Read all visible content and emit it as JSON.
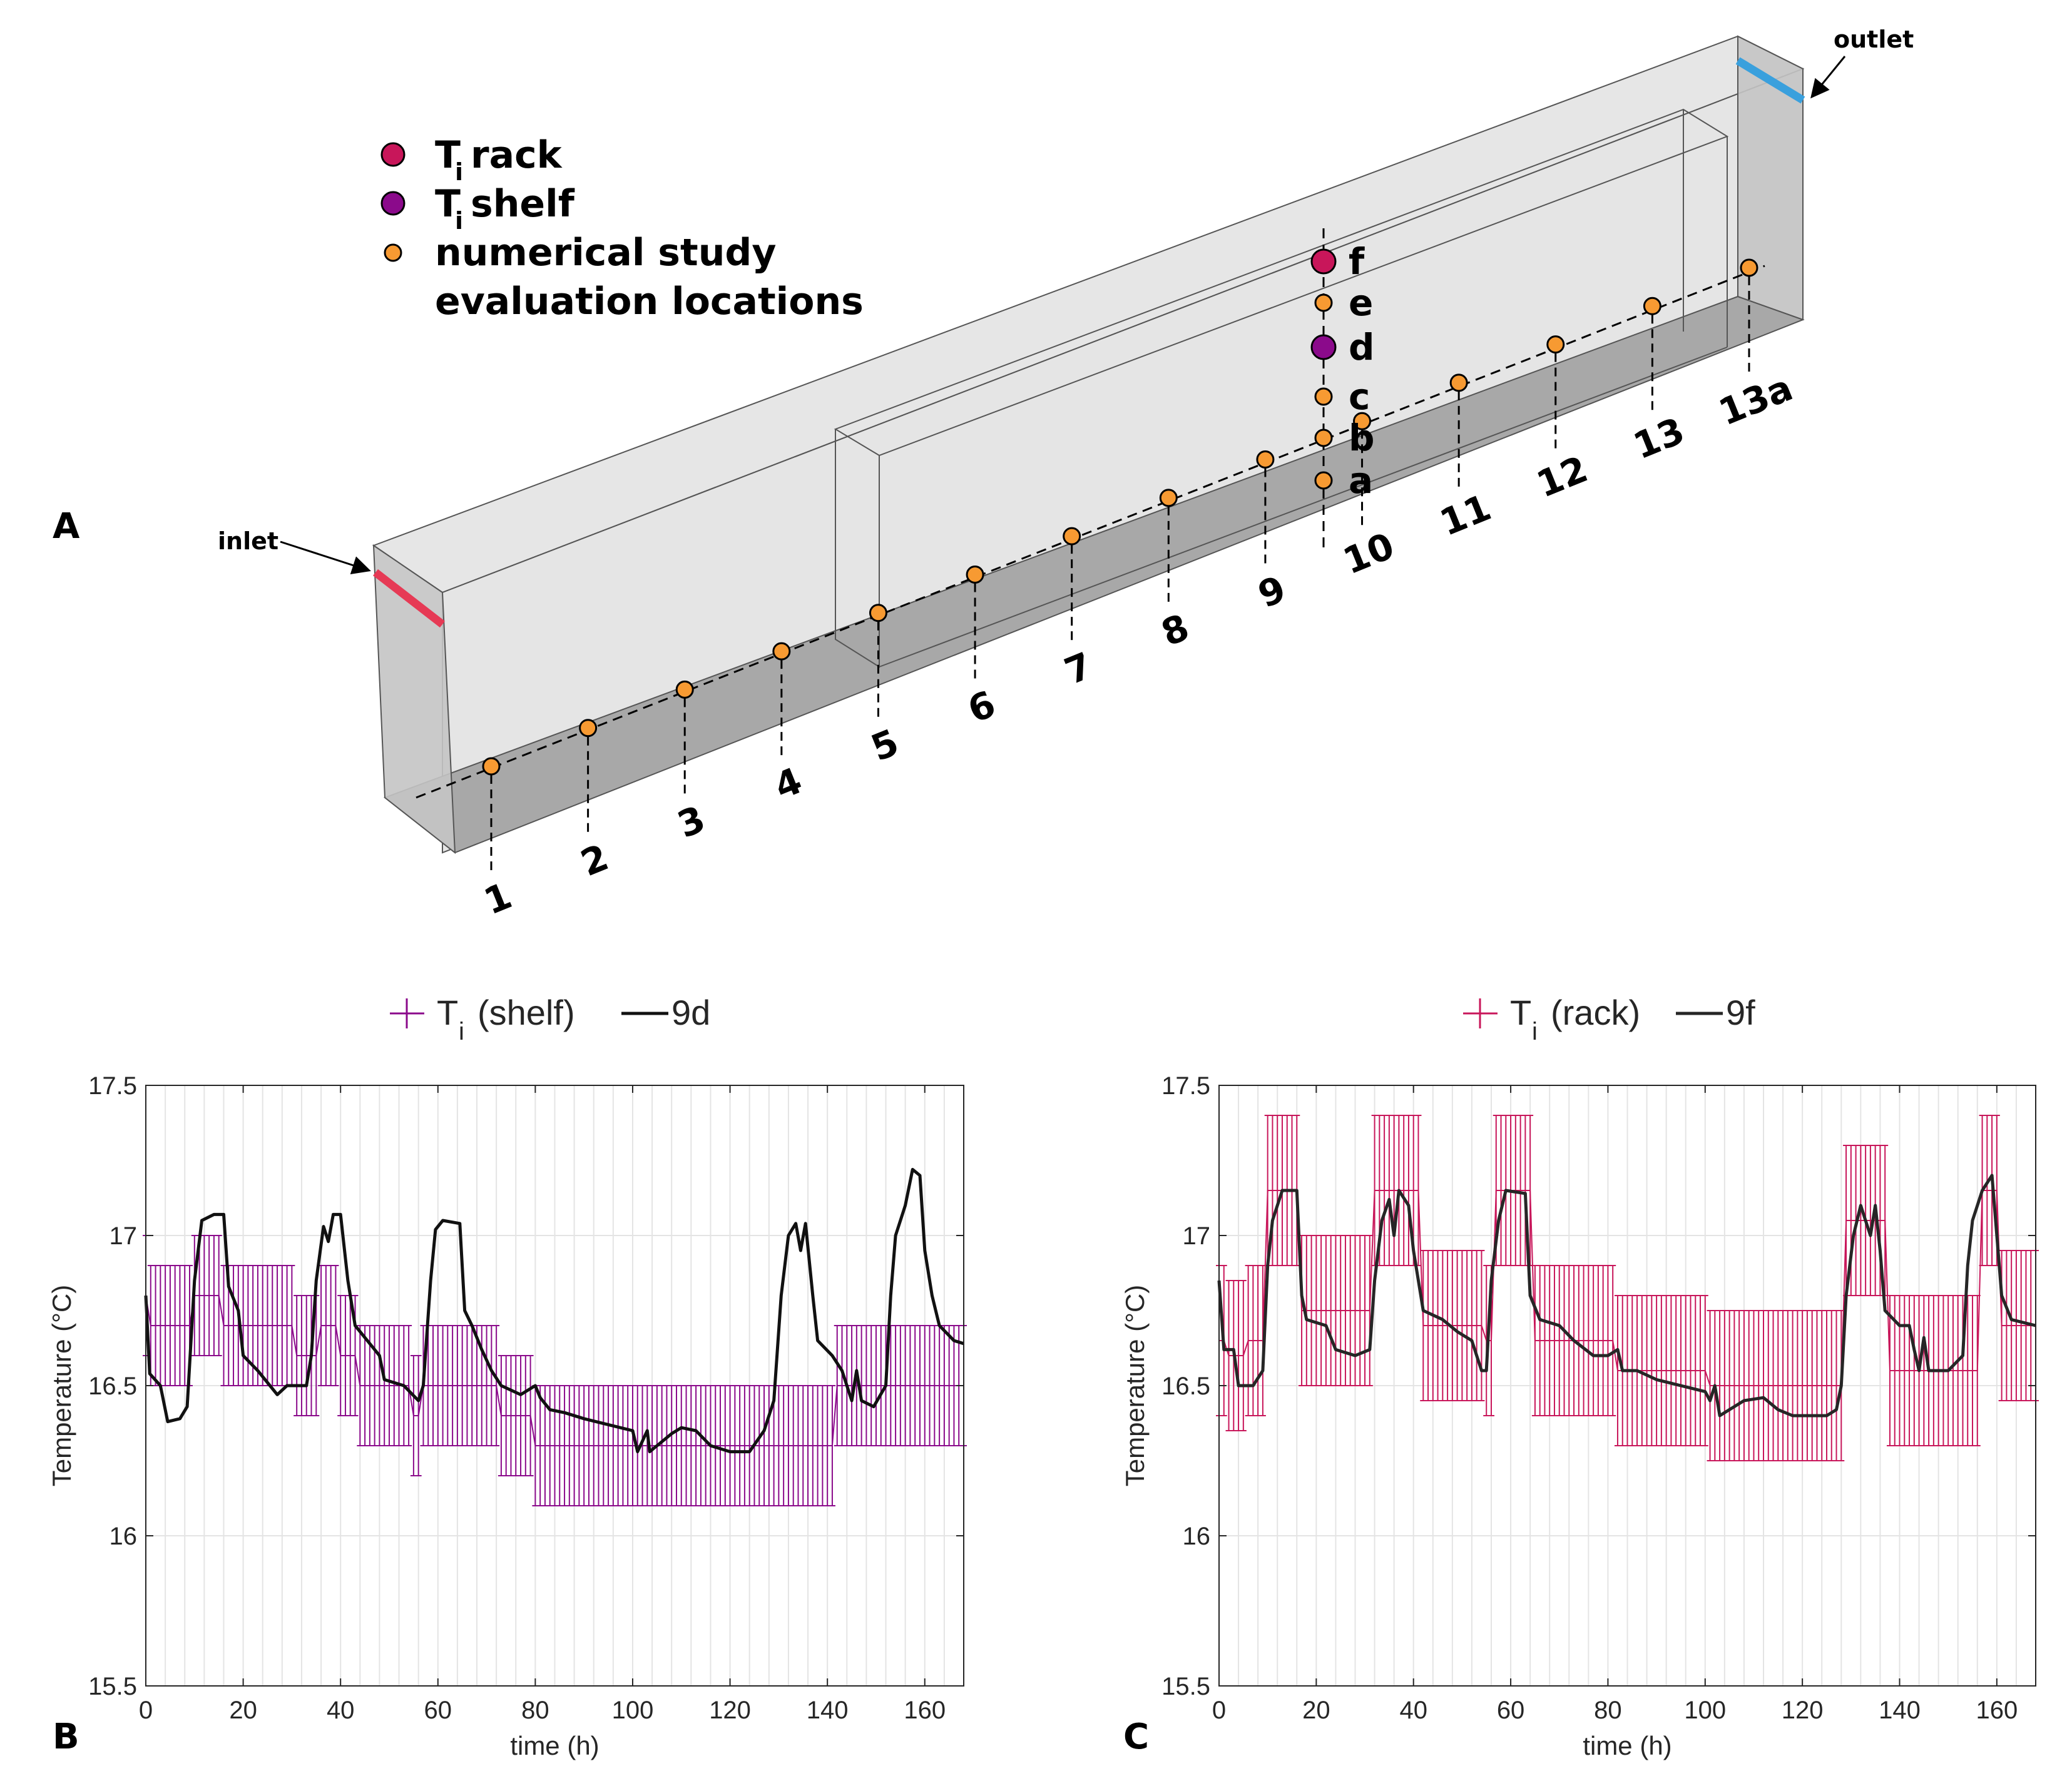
{
  "panels": {
    "a_label": "A",
    "b_label": "B",
    "c_label": "C"
  },
  "diagram": {
    "inlet_label": "inlet",
    "outlet_label": "outlet",
    "legend": {
      "rack_T": "T",
      "rack_sub": "i",
      "rack_text": "rack",
      "shelf_T": "T",
      "shelf_sub": "i",
      "shelf_text": "shelf",
      "numerical_line1": "numerical study",
      "numerical_line2": "evaluation locations"
    },
    "location_labels": [
      "1",
      "2",
      "3",
      "4",
      "5",
      "6",
      "7",
      "8",
      "9",
      "10",
      "11",
      "12",
      "13",
      "13a"
    ],
    "vertical_labels": [
      "a",
      "b",
      "c",
      "d",
      "e",
      "f"
    ],
    "colors": {
      "rack": "#c8165a",
      "shelf": "#8b0a8b",
      "eval": "#f79a32",
      "inlet": "#e63a55",
      "outlet": "#3aa0dd"
    }
  },
  "chart_data": [
    {
      "type": "line",
      "panel": "B",
      "xlabel": "time (h)",
      "ylabel": "Temperature (°C)",
      "xlim": [
        0,
        168
      ],
      "ylim": [
        15.5,
        17.5
      ],
      "xticks": [
        "0",
        "20",
        "40",
        "60",
        "80",
        "100",
        "120",
        "140",
        "160"
      ],
      "yticks": [
        "15.5",
        "16",
        "16.5",
        "17",
        "17.5"
      ],
      "grid": true,
      "legend_position": "top",
      "legend": {
        "meas_T": "T",
        "meas_sub": "i",
        "meas_text": "(shelf)",
        "sim_label": "9d"
      },
      "series": [
        {
          "name": "T_i (shelf)",
          "kind": "errorbar",
          "color": "#8b0a8b",
          "halfwidth": 0.2,
          "steps": [
            [
              0,
              16.8
            ],
            [
              1,
              16.7
            ],
            [
              10,
              16.8
            ],
            [
              16,
              16.7
            ],
            [
              31,
              16.6
            ],
            [
              36,
              16.7
            ],
            [
              40,
              16.6
            ],
            [
              44,
              16.5
            ],
            [
              55,
              16.4
            ],
            [
              57,
              16.5
            ],
            [
              73,
              16.4
            ],
            [
              80,
              16.3
            ],
            [
              100,
              16.3
            ],
            [
              140,
              16.3
            ],
            [
              142,
              16.5
            ],
            [
              168,
              16.5
            ]
          ]
        },
        {
          "name": "9d",
          "kind": "line",
          "color": "#111111",
          "points": [
            [
              0,
              16.8
            ],
            [
              0.8,
              16.54
            ],
            [
              3,
              16.5
            ],
            [
              4.5,
              16.38
            ],
            [
              7,
              16.39
            ],
            [
              8.5,
              16.43
            ],
            [
              10,
              16.85
            ],
            [
              11.5,
              17.05
            ],
            [
              14,
              17.07
            ],
            [
              16,
              17.07
            ],
            [
              17,
              16.83
            ],
            [
              19,
              16.75
            ],
            [
              20,
              16.6
            ],
            [
              23,
              16.55
            ],
            [
              25.5,
              16.5
            ],
            [
              27,
              16.47
            ],
            [
              29,
              16.5
            ],
            [
              33,
              16.5
            ],
            [
              34,
              16.6
            ],
            [
              35,
              16.85
            ],
            [
              36.5,
              17.03
            ],
            [
              37.5,
              16.98
            ],
            [
              38.5,
              17.07
            ],
            [
              40,
              17.07
            ],
            [
              41.5,
              16.85
            ],
            [
              43,
              16.7
            ],
            [
              46,
              16.64
            ],
            [
              48,
              16.6
            ],
            [
              49,
              16.52
            ],
            [
              53,
              16.5
            ],
            [
              56,
              16.45
            ],
            [
              57,
              16.5
            ],
            [
              58.5,
              16.85
            ],
            [
              59.5,
              17.02
            ],
            [
              61,
              17.05
            ],
            [
              64.5,
              17.04
            ],
            [
              65.5,
              16.75
            ],
            [
              67,
              16.7
            ],
            [
              69,
              16.62
            ],
            [
              71,
              16.55
            ],
            [
              73,
              16.5
            ],
            [
              77,
              16.47
            ],
            [
              80,
              16.5
            ],
            [
              81,
              16.46
            ],
            [
              83,
              16.42
            ],
            [
              86,
              16.41
            ],
            [
              90,
              16.39
            ],
            [
              95,
              16.37
            ],
            [
              100,
              16.35
            ],
            [
              101,
              16.28
            ],
            [
              103,
              16.35
            ],
            [
              103.5,
              16.28
            ],
            [
              105,
              16.3
            ],
            [
              108,
              16.34
            ],
            [
              110,
              16.36
            ],
            [
              113,
              16.35
            ],
            [
              116,
              16.3
            ],
            [
              120,
              16.28
            ],
            [
              124,
              16.28
            ],
            [
              127,
              16.35
            ],
            [
              129,
              16.45
            ],
            [
              130.5,
              16.8
            ],
            [
              132,
              17.0
            ],
            [
              133.5,
              17.04
            ],
            [
              134.5,
              16.95
            ],
            [
              135.5,
              17.04
            ],
            [
              137,
              16.8
            ],
            [
              138,
              16.65
            ],
            [
              141,
              16.6
            ],
            [
              143,
              16.55
            ],
            [
              145,
              16.45
            ],
            [
              146,
              16.55
            ],
            [
              147,
              16.45
            ],
            [
              149.5,
              16.43
            ],
            [
              152,
              16.5
            ],
            [
              153,
              16.8
            ],
            [
              154,
              17.0
            ],
            [
              156,
              17.1
            ],
            [
              157.5,
              17.22
            ],
            [
              159,
              17.2
            ],
            [
              160,
              16.95
            ],
            [
              161.5,
              16.8
            ],
            [
              163,
              16.7
            ],
            [
              166,
              16.65
            ],
            [
              168,
              16.64
            ]
          ]
        }
      ]
    },
    {
      "type": "line",
      "panel": "C",
      "xlabel": "time (h)",
      "ylabel": "Temperature (°C)",
      "xlim": [
        0,
        168
      ],
      "ylim": [
        15.5,
        17.5
      ],
      "xticks": [
        "0",
        "20",
        "40",
        "60",
        "80",
        "100",
        "120",
        "140",
        "160"
      ],
      "yticks": [
        "15.5",
        "16",
        "16.5",
        "17",
        "17.5"
      ],
      "grid": true,
      "legend_position": "top",
      "legend": {
        "meas_T": "T",
        "meas_sub": "i",
        "meas_text": "(rack)",
        "sim_label": "9f"
      },
      "series": [
        {
          "name": "T_i (rack)",
          "kind": "errorbar",
          "color": "#c8165a",
          "halfwidth": 0.25,
          "steps": [
            [
              0,
              16.65
            ],
            [
              2,
              16.6
            ],
            [
              6,
              16.65
            ],
            [
              10,
              17.15
            ],
            [
              17,
              16.75
            ],
            [
              25,
              16.75
            ],
            [
              32,
              17.15
            ],
            [
              42,
              16.7
            ],
            [
              55,
              16.65
            ],
            [
              57,
              17.15
            ],
            [
              65,
              16.65
            ],
            [
              82,
              16.55
            ],
            [
              101,
              16.5
            ],
            [
              104,
              16.5
            ],
            [
              128,
              16.5
            ],
            [
              129,
              17.05
            ],
            [
              138,
              16.55
            ],
            [
              140,
              16.55
            ],
            [
              157,
              17.15
            ],
            [
              161,
              16.7
            ],
            [
              168,
              16.7
            ]
          ]
        },
        {
          "name": "9f",
          "kind": "line",
          "color": "#262626",
          "points": [
            [
              0,
              16.85
            ],
            [
              1,
              16.62
            ],
            [
              3,
              16.62
            ],
            [
              4,
              16.5
            ],
            [
              7,
              16.5
            ],
            [
              9,
              16.55
            ],
            [
              10,
              16.9
            ],
            [
              11,
              17.05
            ],
            [
              13,
              17.15
            ],
            [
              16,
              17.15
            ],
            [
              17,
              16.8
            ],
            [
              18,
              16.72
            ],
            [
              22,
              16.7
            ],
            [
              24,
              16.62
            ],
            [
              28,
              16.6
            ],
            [
              31,
              16.62
            ],
            [
              32,
              16.85
            ],
            [
              33.5,
              17.05
            ],
            [
              35,
              17.12
            ],
            [
              36,
              17.0
            ],
            [
              37,
              17.15
            ],
            [
              39,
              17.1
            ],
            [
              40,
              16.95
            ],
            [
              42,
              16.75
            ],
            [
              46,
              16.72
            ],
            [
              49,
              16.68
            ],
            [
              52,
              16.65
            ],
            [
              54,
              16.55
            ],
            [
              55,
              16.55
            ],
            [
              56,
              16.85
            ],
            [
              57.5,
              17.05
            ],
            [
              59,
              17.15
            ],
            [
              63,
              17.14
            ],
            [
              64,
              16.8
            ],
            [
              66,
              16.72
            ],
            [
              70,
              16.7
            ],
            [
              73,
              16.65
            ],
            [
              77,
              16.6
            ],
            [
              80,
              16.6
            ],
            [
              82,
              16.62
            ],
            [
              83,
              16.55
            ],
            [
              86,
              16.55
            ],
            [
              90,
              16.52
            ],
            [
              95,
              16.5
            ],
            [
              100,
              16.48
            ],
            [
              101,
              16.45
            ],
            [
              102,
              16.5
            ],
            [
              103,
              16.4
            ],
            [
              105,
              16.42
            ],
            [
              108,
              16.45
            ],
            [
              112,
              16.46
            ],
            [
              115,
              16.42
            ],
            [
              118,
              16.4
            ],
            [
              122,
              16.4
            ],
            [
              125,
              16.4
            ],
            [
              127,
              16.42
            ],
            [
              128,
              16.5
            ],
            [
              129,
              16.8
            ],
            [
              130.5,
              17.0
            ],
            [
              132,
              17.1
            ],
            [
              133,
              17.05
            ],
            [
              134,
              17.0
            ],
            [
              135,
              17.1
            ],
            [
              136,
              16.95
            ],
            [
              137,
              16.75
            ],
            [
              140,
              16.7
            ],
            [
              142,
              16.7
            ],
            [
              143,
              16.62
            ],
            [
              144,
              16.55
            ],
            [
              145,
              16.66
            ],
            [
              146,
              16.55
            ],
            [
              150,
              16.55
            ],
            [
              153,
              16.6
            ],
            [
              154,
              16.9
            ],
            [
              155,
              17.05
            ],
            [
              157,
              17.15
            ],
            [
              159,
              17.2
            ],
            [
              160,
              17.0
            ],
            [
              161,
              16.8
            ],
            [
              163,
              16.72
            ],
            [
              168,
              16.7
            ]
          ]
        }
      ]
    }
  ]
}
